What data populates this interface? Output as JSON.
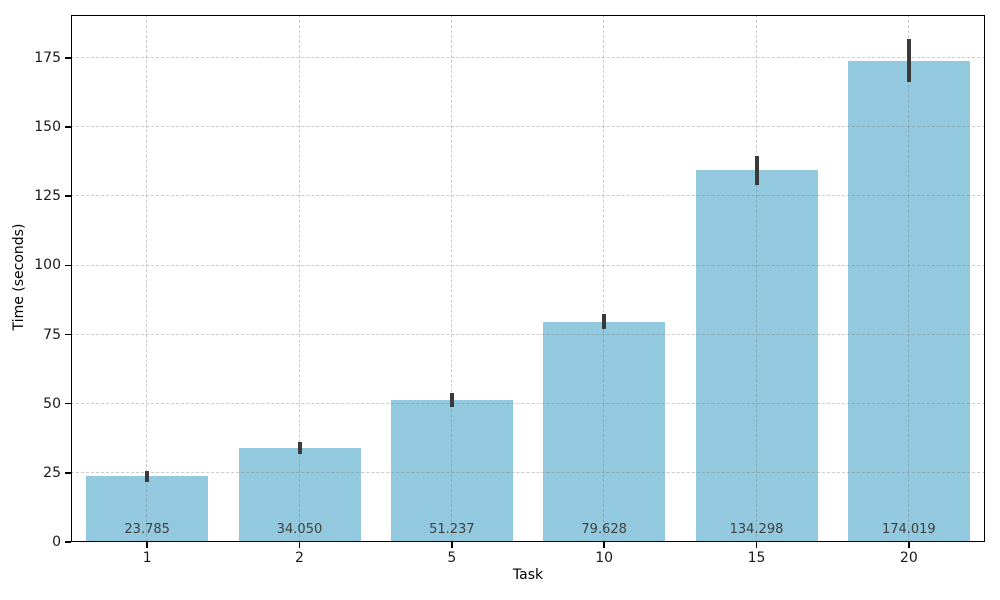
{
  "figure": {
    "background": "#ffffff"
  },
  "chart_data": {
    "type": "bar",
    "title": "",
    "xlabel": "Task",
    "ylabel": "Time (seconds)",
    "categories": [
      "1",
      "2",
      "5",
      "10",
      "15",
      "20"
    ],
    "values": [
      23.785,
      34.05,
      51.237,
      79.628,
      134.298,
      174.019
    ],
    "bar_value_labels": [
      "23.785",
      "34.050",
      "51.237",
      "79.628",
      "134.298",
      "174.019"
    ],
    "errors": [
      2.0,
      2.2,
      2.5,
      2.8,
      5.2,
      7.8
    ],
    "yticks": [
      0,
      25,
      50,
      75,
      100,
      125,
      150,
      175
    ],
    "ylim": [
      0,
      190.5
    ],
    "grid": true,
    "legend_position": "none",
    "bar_color": "#92c9de",
    "error_color": "#3a3a3a",
    "grid_color": "#cccccc",
    "tick_text_color": "#1a1a1a",
    "value_label_color": "#404040"
  }
}
